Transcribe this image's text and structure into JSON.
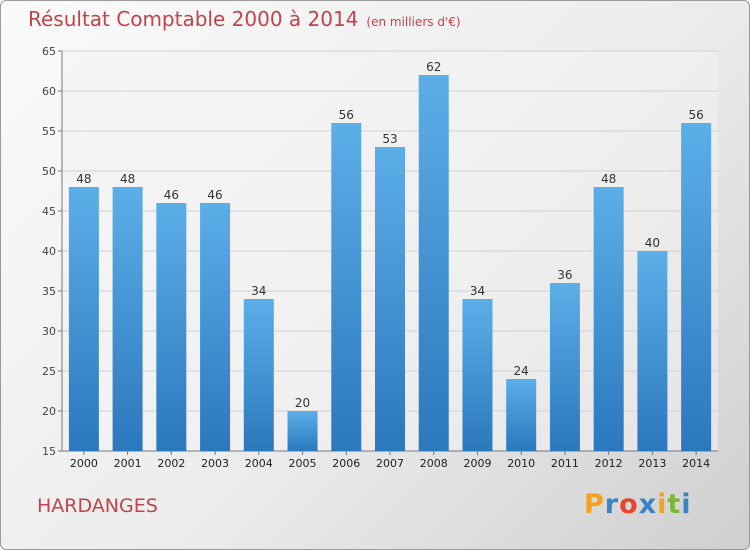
{
  "chart_data": {
    "type": "bar",
    "title": "Résultat Comptable 2000 à 2014",
    "subtitle": "(en milliers d'€)",
    "categories": [
      "2000",
      "2001",
      "2002",
      "2003",
      "2004",
      "2005",
      "2006",
      "2007",
      "2008",
      "2009",
      "2010",
      "2011",
      "2012",
      "2013",
      "2014"
    ],
    "values": [
      48,
      48,
      46,
      46,
      34,
      20,
      56,
      53,
      62,
      34,
      24,
      36,
      48,
      40,
      56
    ],
    "ylim": [
      15,
      65
    ],
    "yticks": [
      15,
      20,
      25,
      30,
      35,
      40,
      45,
      50,
      55,
      60,
      65
    ],
    "grid": true,
    "bar_color": "#3d8fd6"
  },
  "commune": "HARDANGES",
  "logo": {
    "letters": [
      "P",
      "r",
      "o",
      "x",
      "i",
      "t",
      "i"
    ],
    "colors": [
      "#f5a21b",
      "#3a83c4",
      "#e8452c",
      "#3a83c4",
      "#f5a21b",
      "#7ab733",
      "#3a83c4"
    ]
  }
}
